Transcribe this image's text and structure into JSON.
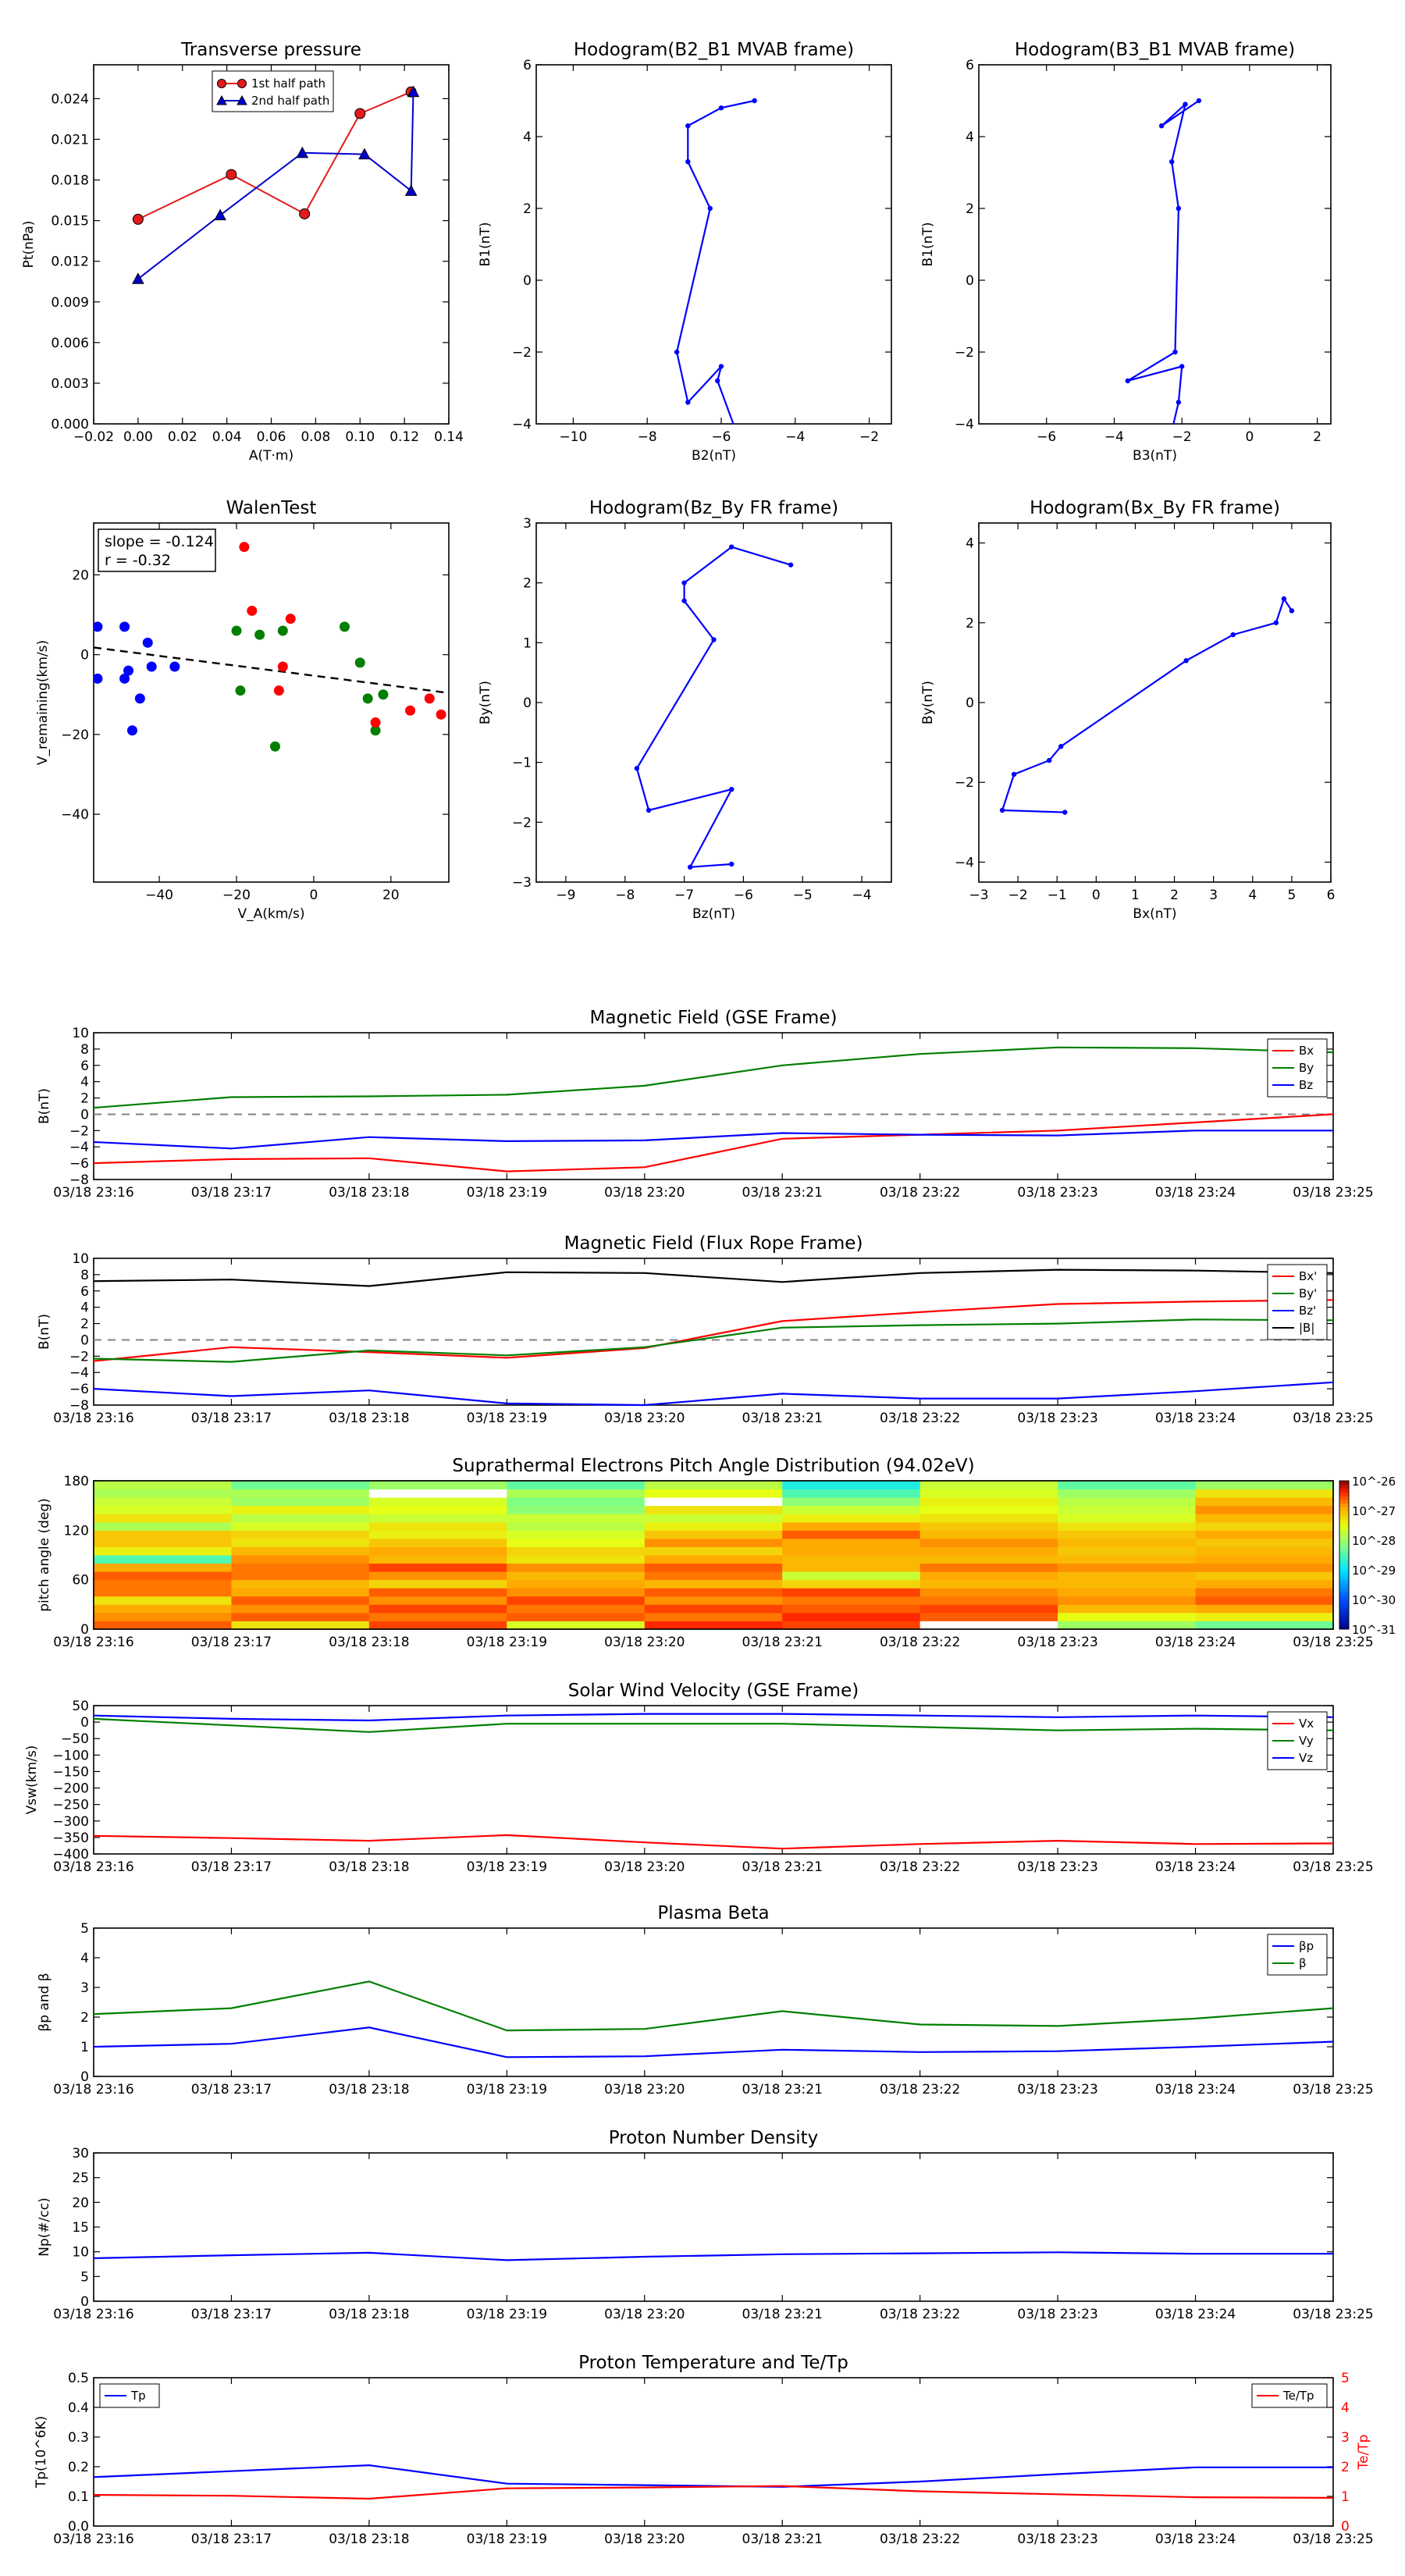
{
  "chart_data": [
    {
      "id": "tp",
      "type": "line",
      "title": "Transverse pressure",
      "xlabel": "A(T·m)",
      "ylabel": "Pt(nPa)",
      "xlim": [
        -0.02,
        0.14
      ],
      "ylim": [
        0.0,
        0.0265
      ],
      "xticks": [
        -0.02,
        0.0,
        0.02,
        0.04,
        0.06,
        0.08,
        0.1,
        0.12,
        0.14
      ],
      "xtick_labels": [
        "−0.02",
        "0.00",
        "0.02",
        "0.04",
        "0.06",
        "0.08",
        "0.10",
        "0.12",
        "0.14"
      ],
      "yticks": [
        0.0,
        0.003,
        0.006,
        0.009,
        0.012,
        0.015,
        0.018,
        0.021,
        0.024
      ],
      "ytick_labels": [
        "0.000",
        "0.003",
        "0.006",
        "0.009",
        "0.012",
        "0.015",
        "0.018",
        "0.021",
        "0.024"
      ],
      "legend_position": "top",
      "series": [
        {
          "name": "1st half path",
          "color": "#e31a1c",
          "marker": "circle",
          "x": [
            0.0,
            0.042,
            0.075,
            0.1,
            0.123
          ],
          "y": [
            0.0151,
            0.0184,
            0.0155,
            0.0229,
            0.0245
          ]
        },
        {
          "name": "2nd half path",
          "color": "#0000cc",
          "marker": "triangle",
          "x": [
            0.0,
            0.037,
            0.074,
            0.102,
            0.123,
            0.124
          ],
          "y": [
            0.0107,
            0.0154,
            0.02,
            0.0199,
            0.0172,
            0.0245
          ]
        }
      ]
    },
    {
      "id": "h21",
      "type": "line",
      "title": "Hodogram(B2_B1 MVAB frame)",
      "xlabel": "B2(nT)",
      "ylabel": "B1(nT)",
      "xlim": [
        -11,
        -1.4
      ],
      "ylim": [
        -4,
        6
      ],
      "xticks": [
        -10,
        -8,
        -6,
        -4,
        -2
      ],
      "xtick_labels": [
        "−10",
        "−8",
        "−6",
        "−4",
        "−2"
      ],
      "yticks": [
        -4,
        -2,
        0,
        2,
        4,
        6
      ],
      "ytick_labels": [
        "−4",
        "−2",
        "0",
        "2",
        "4",
        "6"
      ],
      "series": [
        {
          "color": "#0000ff",
          "x": [
            -5.1,
            -6.0,
            -6.9,
            -6.9,
            -6.3,
            -7.2,
            -6.9,
            -6.0,
            -6.1,
            -5.6
          ],
          "y": [
            5.0,
            4.8,
            4.3,
            3.3,
            2.0,
            -2.0,
            -3.4,
            -2.4,
            -2.8,
            -4.2
          ]
        }
      ]
    },
    {
      "id": "h31",
      "type": "line",
      "title": "Hodogram(B3_B1 MVAB frame)",
      "xlabel": "B3(nT)",
      "ylabel": "B1(nT)",
      "xlim": [
        -8,
        2.4
      ],
      "ylim": [
        -4,
        6
      ],
      "xticks": [
        -6,
        -4,
        -2,
        0,
        2
      ],
      "xtick_labels": [
        "−6",
        "−4",
        "−2",
        "0",
        "2"
      ],
      "yticks": [
        -4,
        -2,
        0,
        2,
        4,
        6
      ],
      "ytick_labels": [
        "−4",
        "−2",
        "0",
        "2",
        "4",
        "6"
      ],
      "series": [
        {
          "color": "#0000ff",
          "x": [
            -1.5,
            -2.6,
            -1.9,
            -2.3,
            -2.1,
            -2.2,
            -3.6,
            -2.0,
            -2.1,
            -2.3
          ],
          "y": [
            5.0,
            4.3,
            4.9,
            3.3,
            2.0,
            -2.0,
            -2.8,
            -2.4,
            -3.4,
            -4.2
          ]
        }
      ]
    },
    {
      "id": "walen",
      "type": "scatter",
      "title": "WalenTest",
      "xlabel": "V_A(km/s)",
      "ylabel": "V_remaining(km/s)",
      "xlim": [
        -57,
        35
      ],
      "ylim": [
        -57,
        33
      ],
      "xticks": [
        -40,
        -20,
        0,
        20
      ],
      "xtick_labels": [
        "−40",
        "−20",
        "0",
        "20"
      ],
      "yticks": [
        -40,
        -20,
        0,
        20
      ],
      "ytick_labels": [
        "−40",
        "−20",
        "0",
        "20"
      ],
      "annotation": [
        "slope = -0.124",
        "r = -0.32"
      ],
      "fit_line": {
        "x": [
          -57,
          35
        ],
        "y": [
          1.8,
          -9.6
        ]
      },
      "series": [
        {
          "color": "#0000ff",
          "x": [
            -56,
            -56,
            -49,
            -49,
            -48,
            -43,
            -42,
            -36,
            -47,
            -45
          ],
          "y": [
            7,
            -6,
            7,
            -6,
            -4,
            3,
            -3,
            -3,
            -19,
            -11
          ]
        },
        {
          "color": "#007f00",
          "x": [
            -20,
            -14,
            -8,
            -19,
            8,
            12,
            14,
            18,
            -10,
            16
          ],
          "y": [
            6,
            5,
            6,
            -9,
            7,
            -2,
            -11,
            -10,
            -23,
            -19
          ]
        },
        {
          "color": "#ff0000",
          "x": [
            -18,
            -16,
            -6,
            -8,
            25,
            30,
            33,
            16,
            -9
          ],
          "y": [
            27,
            11,
            9,
            -3,
            -14,
            -11,
            -15,
            -17,
            -9
          ]
        }
      ]
    },
    {
      "id": "hzy",
      "type": "line",
      "title": "Hodogram(Bz_By FR frame)",
      "xlabel": "Bz(nT)",
      "ylabel": "By(nT)",
      "xlim": [
        -9.5,
        -3.5
      ],
      "ylim": [
        -3,
        3
      ],
      "xticks": [
        -9,
        -8,
        -7,
        -6,
        -5,
        -4
      ],
      "xtick_labels": [
        "−9",
        "−8",
        "−7",
        "−6",
        "−5",
        "−4"
      ],
      "yticks": [
        -3,
        -2,
        -1,
        0,
        1,
        2,
        3
      ],
      "ytick_labels": [
        "−3",
        "−2",
        "−1",
        "0",
        "1",
        "2",
        "3"
      ],
      "series": [
        {
          "color": "#0000ff",
          "x": [
            -5.2,
            -6.2,
            -7.0,
            -7.0,
            -6.5,
            -7.8,
            -7.6,
            -6.2,
            -6.9,
            -6.2
          ],
          "y": [
            2.3,
            2.6,
            2.0,
            1.7,
            1.05,
            -1.1,
            -1.8,
            -1.45,
            -2.75,
            -2.7
          ]
        }
      ]
    },
    {
      "id": "hxy",
      "type": "line",
      "title": "Hodogram(Bx_By FR frame)",
      "xlabel": "Bx(nT)",
      "ylabel": "By(nT)",
      "xlim": [
        -3,
        6
      ],
      "ylim": [
        -4.5,
        4.5
      ],
      "xticks": [
        -3,
        -2,
        -1,
        0,
        1,
        2,
        3,
        4,
        5,
        6
      ],
      "xtick_labels": [
        "−3",
        "−2",
        "−1",
        "0",
        "1",
        "2",
        "3",
        "4",
        "5",
        "6"
      ],
      "yticks": [
        -4,
        -2,
        0,
        2,
        4
      ],
      "ytick_labels": [
        "−4",
        "−2",
        "0",
        "2",
        "4"
      ],
      "series": [
        {
          "color": "#0000ff",
          "x": [
            5.0,
            4.8,
            4.6,
            3.5,
            2.3,
            -0.9,
            -1.2,
            -2.1,
            -2.4,
            -0.8
          ],
          "y": [
            2.3,
            2.6,
            2.0,
            1.7,
            1.05,
            -1.1,
            -1.45,
            -1.8,
            -2.7,
            -2.75
          ]
        }
      ]
    },
    {
      "id": "bgse",
      "type": "line",
      "title": "Magnetic Field (GSE Frame)",
      "ylabel": "B(nT)",
      "ylim": [
        -8,
        10
      ],
      "yticks": [
        -8,
        -6,
        -4,
        -2,
        0,
        2,
        4,
        6,
        8,
        10
      ],
      "ytick_labels": [
        "−8",
        "−6",
        "−4",
        "−2",
        "0",
        "2",
        "4",
        "6",
        "8",
        "10"
      ],
      "zero_line": true,
      "series": [
        {
          "name": "Bx",
          "color": "#ff0000",
          "values": [
            -6.0,
            -5.5,
            -5.4,
            -7.0,
            -6.5,
            -3.0,
            -2.5,
            -2.0,
            -1.0,
            0.0
          ]
        },
        {
          "name": "By",
          "color": "#007f00",
          "values": [
            0.8,
            2.1,
            2.2,
            2.4,
            3.5,
            6.0,
            7.4,
            8.2,
            8.1,
            7.6
          ]
        },
        {
          "name": "Bz",
          "color": "#0000ff",
          "values": [
            -3.4,
            -4.2,
            -2.8,
            -3.3,
            -3.2,
            -2.3,
            -2.5,
            -2.6,
            -2.0,
            -2.0
          ]
        }
      ]
    },
    {
      "id": "bfr",
      "type": "line",
      "title": "Magnetic Field (Flux Rope Frame)",
      "ylabel": "B(nT)",
      "ylim": [
        -8,
        10
      ],
      "yticks": [
        -8,
        -6,
        -4,
        -2,
        0,
        2,
        4,
        6,
        8,
        10
      ],
      "ytick_labels": [
        "−8",
        "−6",
        "−4",
        "−2",
        "0",
        "2",
        "4",
        "6",
        "8",
        "10"
      ],
      "zero_line": true,
      "series": [
        {
          "name": "Bx'",
          "color": "#ff0000",
          "values": [
            -2.6,
            -0.9,
            -1.5,
            -2.2,
            -1.0,
            2.3,
            3.4,
            4.4,
            4.7,
            4.9
          ]
        },
        {
          "name": "By'",
          "color": "#007f00",
          "values": [
            -2.3,
            -2.7,
            -1.3,
            -1.9,
            -0.9,
            1.5,
            1.8,
            2.0,
            2.5,
            2.4
          ]
        },
        {
          "name": "Bz'",
          "color": "#0000ff",
          "values": [
            -6.0,
            -6.9,
            -6.2,
            -7.8,
            -8.0,
            -6.6,
            -7.2,
            -7.2,
            -6.3,
            -5.2
          ]
        },
        {
          "name": "|B|",
          "color": "#000000",
          "values": [
            7.2,
            7.4,
            6.6,
            8.3,
            8.2,
            7.1,
            8.2,
            8.6,
            8.5,
            8.2
          ]
        }
      ]
    },
    {
      "id": "pad",
      "type": "heatmap",
      "title": "Suprathermal Electrons Pitch Angle Distribution (94.02eV)",
      "ylabel": "pitch angle (deg)",
      "ylim": [
        0,
        180
      ],
      "yticks": [
        0,
        60,
        120,
        180
      ],
      "ytick_labels": [
        "0",
        "60",
        "120",
        "180"
      ],
      "colorbar_ticks": [
        "10^-26",
        "10^-27",
        "10^-28",
        "10^-29",
        "10^-30",
        "10^-31"
      ],
      "colorbar_exp": [
        -26,
        -27,
        -28,
        -29,
        -30,
        -31
      ],
      "colorbar_range": [
        -31,
        -26
      ],
      "bins_deg": 10,
      "columns": [
        [
          -26.6,
          -26.8,
          -26.9,
          -27.3,
          -26.7,
          -26.7,
          -26.6,
          -26.9,
          -28.5,
          -27.4,
          -27.1,
          -27.1,
          -27.9,
          -27.3,
          -27.6,
          -27.7,
          -27.9,
          -27.8
        ],
        [
          -27.3,
          -26.6,
          -26.8,
          -26.6,
          -26.9,
          -27.0,
          -26.7,
          -26.7,
          -26.8,
          -27.0,
          -27.3,
          -27.2,
          -27.6,
          -27.8,
          -27.4,
          -28.0,
          -27.9,
          -28.3
        ],
        [
          -26.5,
          -26.7,
          -26.5,
          -26.8,
          -26.6,
          -27.2,
          -26.8,
          -26.5,
          -27.0,
          -26.9,
          -27.1,
          -27.4,
          -27.3,
          -27.7,
          -27.5,
          -27.6,
          -31.0,
          -28.0
        ],
        [
          -27.6,
          -26.6,
          -26.7,
          -26.5,
          -26.8,
          -26.9,
          -27.0,
          -26.8,
          -27.3,
          -27.2,
          -27.5,
          -27.6,
          -27.8,
          -27.7,
          -28.1,
          -28.2,
          -27.9,
          -28.4
        ],
        [
          -26.4,
          -26.7,
          -26.5,
          -26.8,
          -26.6,
          -27.0,
          -26.7,
          -26.6,
          -26.9,
          -27.2,
          -26.8,
          -27.1,
          -27.4,
          -27.7,
          -27.3,
          -31.0,
          -27.5,
          -27.8
        ],
        [
          -26.5,
          -26.4,
          -26.6,
          -26.7,
          -26.5,
          -27.2,
          -27.7,
          -27.0,
          -27.0,
          -26.9,
          -26.9,
          -26.6,
          -26.9,
          -27.4,
          -27.7,
          -28.1,
          -28.5,
          -28.8
        ],
        [
          -31.0,
          -26.6,
          -26.5,
          -26.7,
          -26.8,
          -27.0,
          -26.9,
          -26.7,
          -27.0,
          -26.9,
          -26.8,
          -27.0,
          -27.1,
          -27.3,
          -27.5,
          -27.4,
          -27.6,
          -27.7
        ],
        [
          -28.0,
          -27.5,
          -27.0,
          -26.8,
          -26.9,
          -27.0,
          -27.0,
          -26.8,
          -27.0,
          -27.1,
          -27.0,
          -27.1,
          -27.3,
          -27.6,
          -27.7,
          -27.8,
          -28.0,
          -28.4
        ],
        [
          -28.3,
          -27.4,
          -26.9,
          -26.6,
          -26.7,
          -26.9,
          -27.1,
          -26.8,
          -26.9,
          -27.0,
          -27.1,
          -26.9,
          -27.2,
          -27.0,
          -26.8,
          -27.0,
          -27.3,
          -28.0
        ]
      ]
    },
    {
      "id": "vsw",
      "type": "line",
      "title": "Solar Wind Velocity (GSE Frame)",
      "ylabel": "Vsw(km/s)",
      "ylim": [
        -400,
        50
      ],
      "yticks": [
        -400,
        -350,
        -300,
        -250,
        -200,
        -150,
        -100,
        -50,
        0,
        50
      ],
      "ytick_labels": [
        "−400",
        "−350",
        "−300",
        "−250",
        "−200",
        "−150",
        "−100",
        "−50",
        "0",
        "50"
      ],
      "series": [
        {
          "name": "Vx",
          "color": "#ff0000",
          "values": [
            -345,
            -352,
            -360,
            -343,
            -365,
            -384,
            -370,
            -360,
            -370,
            -368
          ]
        },
        {
          "name": "Vy",
          "color": "#007f00",
          "values": [
            10,
            -10,
            -30,
            -5,
            -5,
            -5,
            -15,
            -25,
            -20,
            -25
          ]
        },
        {
          "name": "Vz",
          "color": "#0000ff",
          "values": [
            20,
            10,
            5,
            20,
            25,
            25,
            20,
            15,
            20,
            15
          ]
        }
      ]
    },
    {
      "id": "beta",
      "type": "line",
      "title": "Plasma Beta",
      "ylabel": "βp and β",
      "ylim": [
        0,
        5
      ],
      "yticks": [
        0,
        1,
        2,
        3,
        4,
        5
      ],
      "ytick_labels": [
        "0",
        "1",
        "2",
        "3",
        "4",
        "5"
      ],
      "series": [
        {
          "name": "βp",
          "color": "#0000ff",
          "values": [
            1.0,
            1.1,
            1.65,
            0.65,
            0.68,
            0.9,
            0.82,
            0.85,
            1.0,
            1.17
          ]
        },
        {
          "name": "β",
          "color": "#007f00",
          "values": [
            2.1,
            2.3,
            3.2,
            1.55,
            1.6,
            2.2,
            1.75,
            1.7,
            1.95,
            2.3
          ]
        }
      ]
    },
    {
      "id": "np",
      "type": "line",
      "title": "Proton Number Density",
      "ylabel": "Np(#/cc)",
      "ylim": [
        0,
        30
      ],
      "yticks": [
        0,
        5,
        10,
        15,
        20,
        25,
        30
      ],
      "ytick_labels": [
        "0",
        "5",
        "10",
        "15",
        "20",
        "25",
        "30"
      ],
      "series": [
        {
          "color": "#0000ff",
          "values": [
            8.7,
            9.3,
            9.8,
            8.3,
            9.0,
            9.5,
            9.7,
            9.9,
            9.6,
            9.6
          ]
        }
      ]
    },
    {
      "id": "tp2",
      "type": "line",
      "title": "Proton Temperature and Te/Tp",
      "ylabel": "Tp(10^6K)",
      "y2label": "Te/Tp",
      "ylim": [
        0,
        0.5
      ],
      "y2lim": [
        0,
        5
      ],
      "yticks": [
        0,
        0.1,
        0.2,
        0.3,
        0.4,
        0.5
      ],
      "ytick_labels": [
        "0.0",
        "0.1",
        "0.2",
        "0.3",
        "0.4",
        "0.5"
      ],
      "y2ticks": [
        0,
        1,
        2,
        3,
        4,
        5
      ],
      "y2tick_labels": [
        "0",
        "1",
        "2",
        "3",
        "4",
        "5"
      ],
      "series": [
        {
          "name": "Tp",
          "color": "#0000ff",
          "axis": "left",
          "values": [
            0.165,
            0.185,
            0.205,
            0.143,
            0.138,
            0.132,
            0.15,
            0.175,
            0.198,
            0.198
          ]
        },
        {
          "name": "Te/Tp",
          "color": "#ff0000",
          "axis": "right",
          "values": [
            1.05,
            1.02,
            0.92,
            1.27,
            1.3,
            1.35,
            1.17,
            1.07,
            0.97,
            0.95
          ]
        }
      ]
    }
  ],
  "time_tick_labels": [
    "03/18 23:16",
    "03/18 23:17",
    "03/18 23:18",
    "03/18 23:19",
    "03/18 23:20",
    "03/18 23:21",
    "03/18 23:22",
    "03/18 23:23",
    "03/18 23:24",
    "03/18 23:25"
  ]
}
